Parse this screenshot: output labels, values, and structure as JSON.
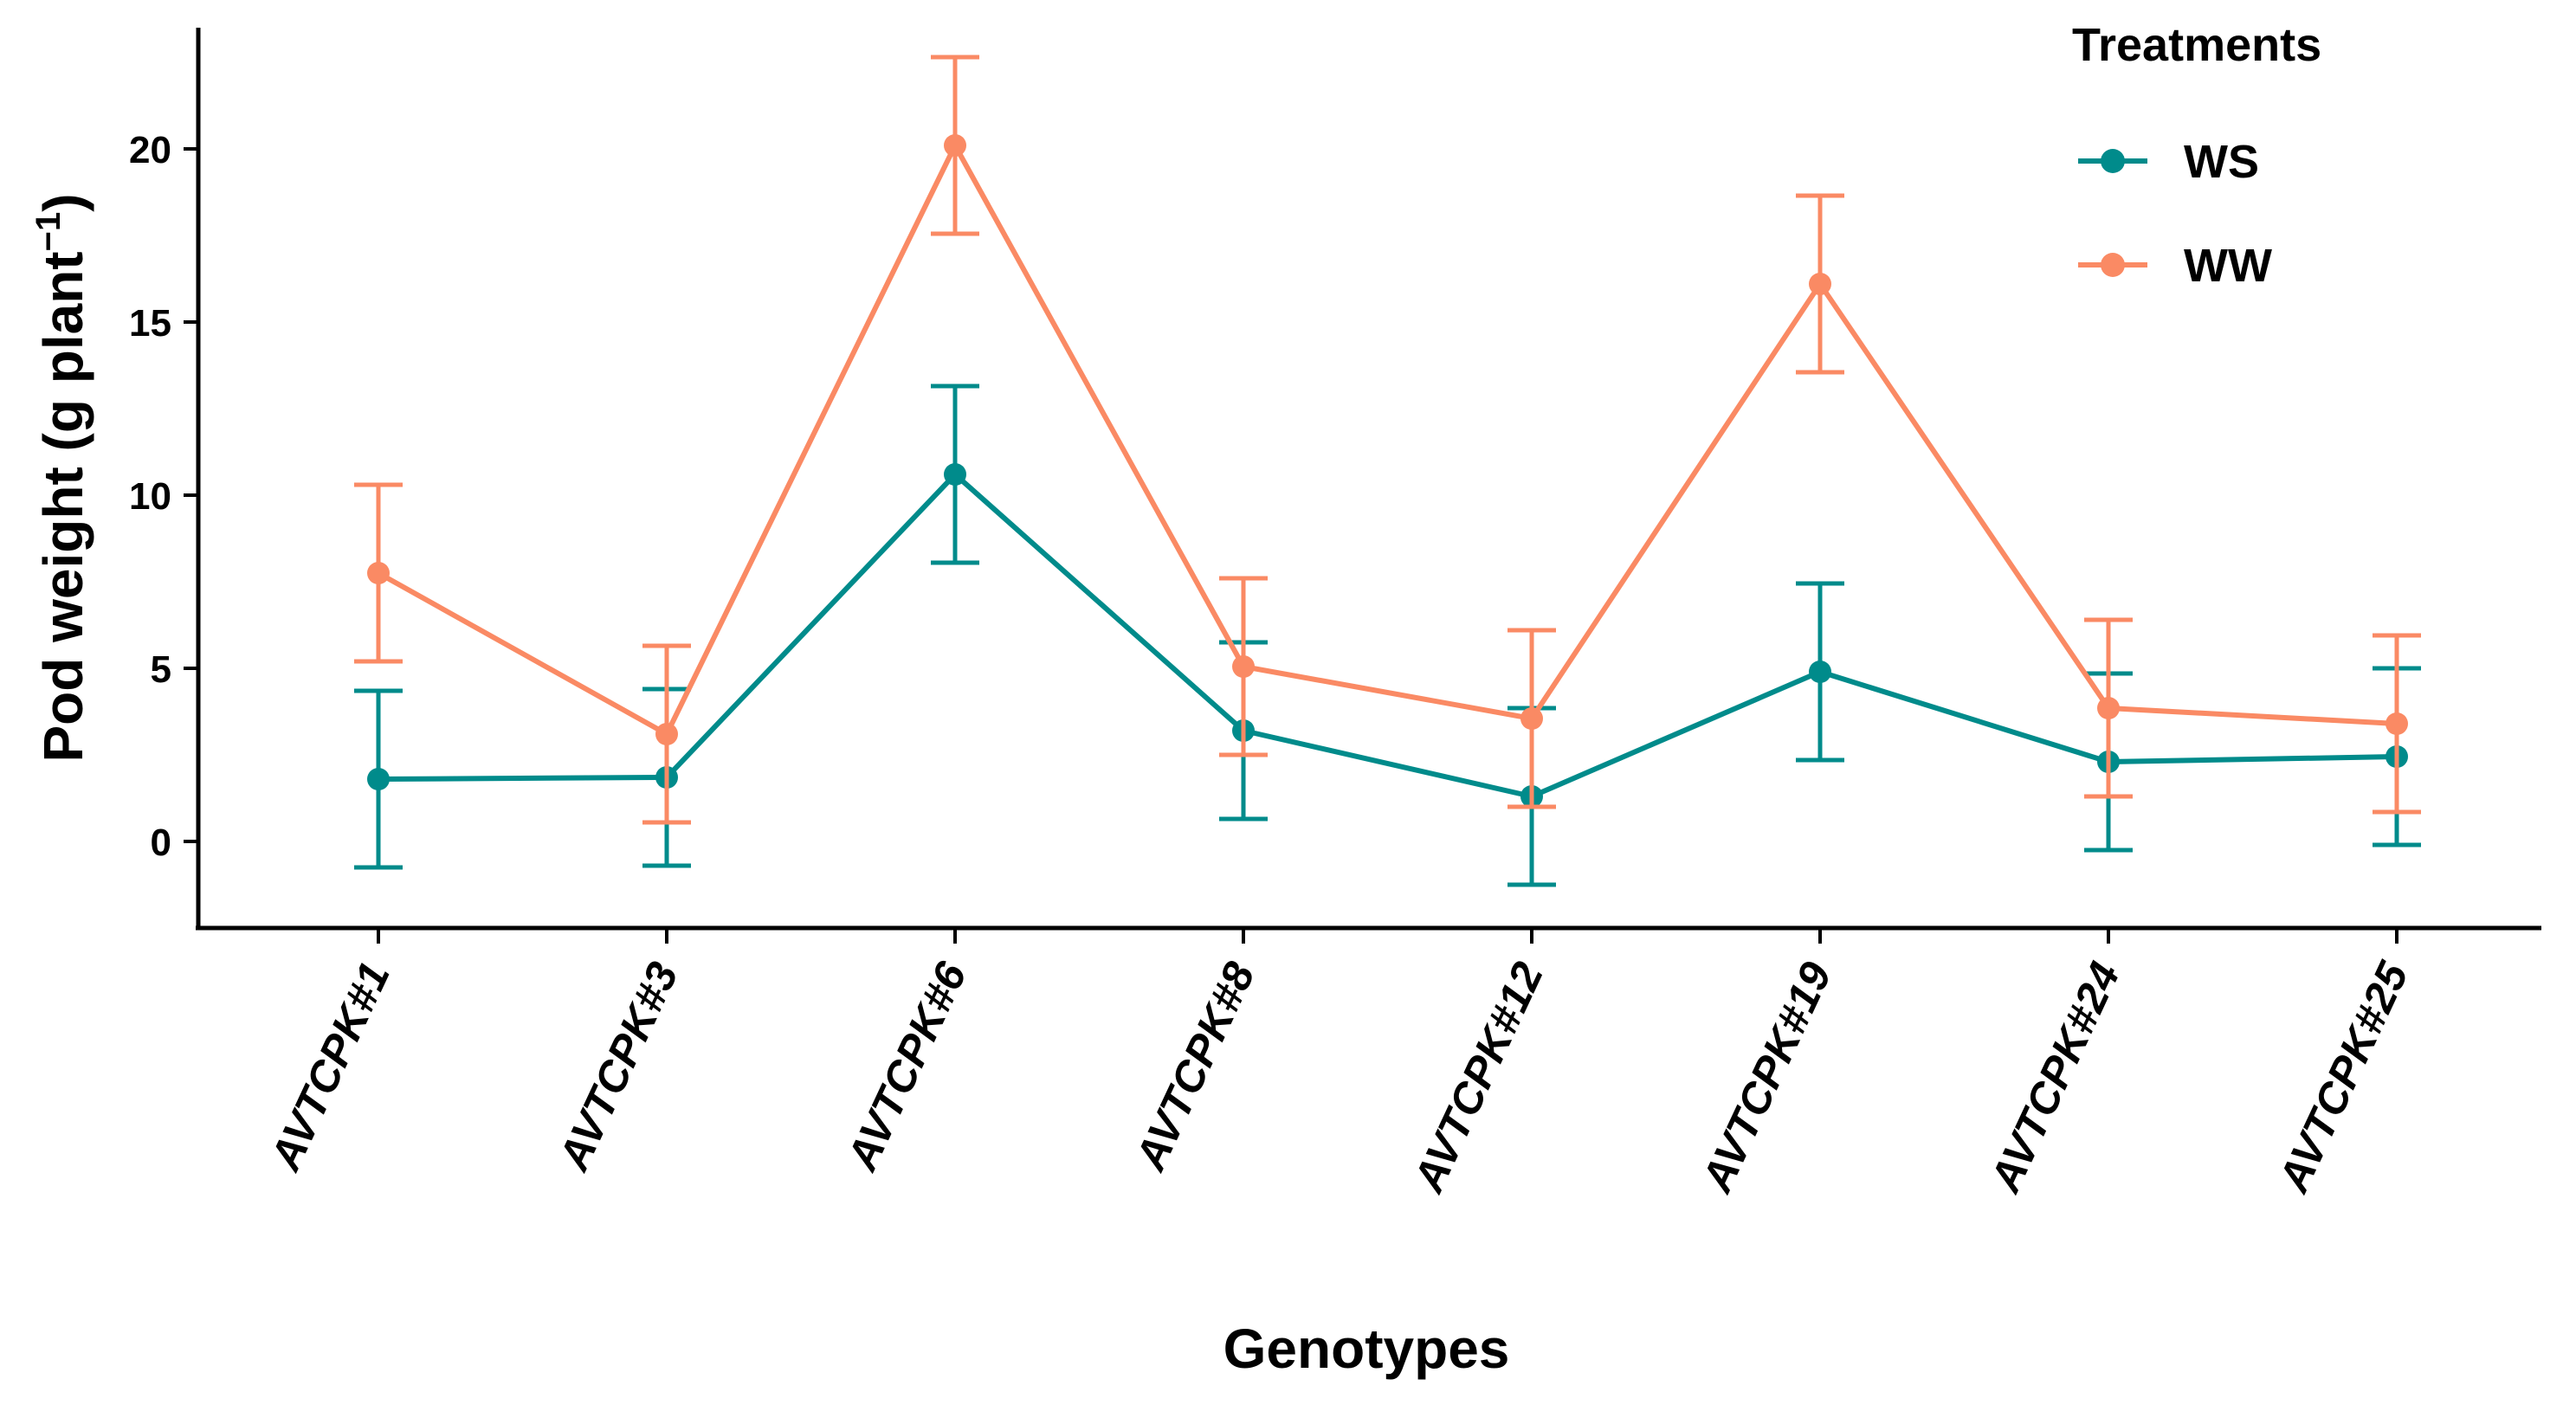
{
  "chart_data": {
    "type": "line",
    "title": "",
    "xlabel": "Genotypes",
    "ylabel": "Pod weight (g plant",
    "ylabel_superscript": "−1",
    "ylabel_close": ")",
    "categories": [
      "AVTCPK#1",
      "AVTCPK#3",
      "AVTCPK#6",
      "AVTCPK#8",
      "AVTCPK#12",
      "AVTCPK#19",
      "AVTCPK#24",
      "AVTCPK#25"
    ],
    "ylim": [
      -2.5,
      23.5
    ],
    "yticks": [
      0,
      5,
      10,
      15,
      20
    ],
    "grid": false,
    "error_bars": true,
    "legend": {
      "title": "Treatments",
      "position": "top-right"
    },
    "series": [
      {
        "name": "WS",
        "color": "#008B8B",
        "values": [
          1.8,
          1.85,
          10.6,
          3.2,
          1.3,
          4.9,
          2.3,
          2.45
        ],
        "lower": [
          -0.75,
          -0.7,
          8.05,
          0.65,
          -1.25,
          2.35,
          -0.25,
          -0.1
        ],
        "upper": [
          4.35,
          4.4,
          13.15,
          5.75,
          3.85,
          7.45,
          4.85,
          5.0
        ]
      },
      {
        "name": "WW",
        "color": "#FA8A64",
        "values": [
          7.75,
          3.1,
          20.1,
          5.05,
          3.55,
          16.1,
          3.85,
          3.4
        ],
        "lower": [
          5.2,
          0.55,
          17.55,
          2.5,
          1.0,
          13.55,
          1.3,
          0.85
        ],
        "upper": [
          10.3,
          5.65,
          22.65,
          7.6,
          6.1,
          18.65,
          6.4,
          5.95
        ]
      }
    ]
  }
}
